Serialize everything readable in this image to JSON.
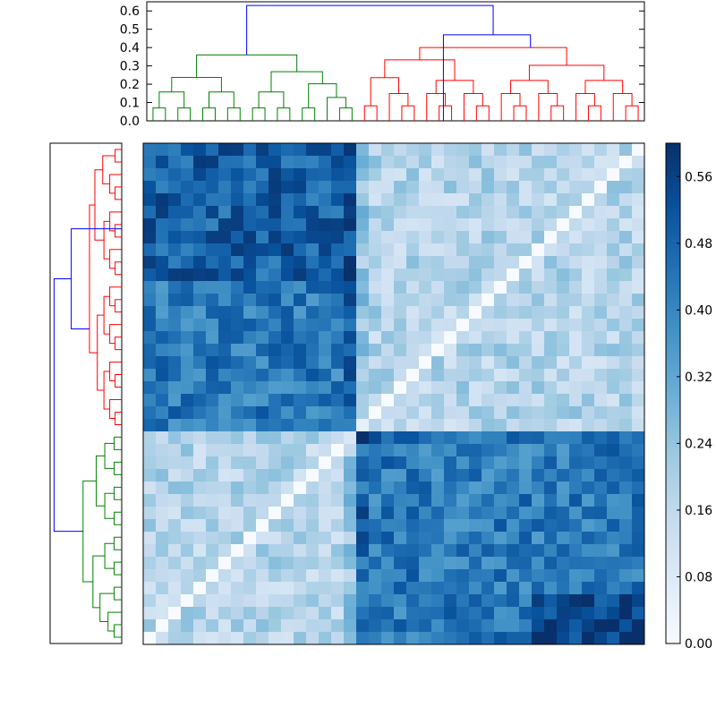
{
  "chart_data": {
    "type": "heatmap",
    "title": "",
    "xlabel": "",
    "ylabel": "",
    "n": 40,
    "dendrogram_top": {
      "yticks": [
        "0.0",
        "0.1",
        "0.2",
        "0.3",
        "0.4",
        "0.5",
        "0.6"
      ],
      "ylim": [
        0,
        0.65
      ],
      "colors": {
        "cluster_a": "#008000",
        "cluster_b": "#ff0000",
        "above_threshold": "#0000ff"
      }
    },
    "dendrogram_left": {
      "colors": {
        "cluster_a": "#008000",
        "cluster_b": "#ff0000",
        "above_threshold": "#0000ff"
      }
    },
    "heatmap": {
      "colormap": "Blues",
      "vmin": 0.0,
      "vmax": 0.6,
      "cluster_boundaries": [
        17,
        23
      ],
      "description_blocks": {
        "within_cluster_low": 0.18,
        "between_cluster_high": 0.42
      }
    },
    "colorbar": {
      "ticks": [
        "0.00",
        "0.08",
        "0.16",
        "0.24",
        "0.32",
        "0.40",
        "0.48",
        "0.56"
      ],
      "range": [
        0.0,
        0.6
      ]
    }
  }
}
